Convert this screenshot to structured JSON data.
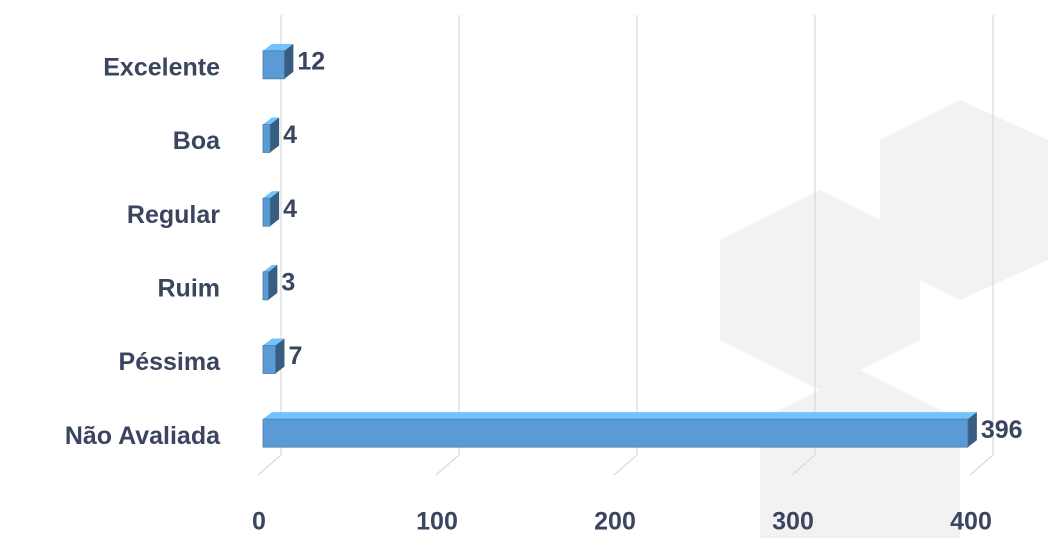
{
  "chart_data": {
    "type": "bar",
    "orientation": "horizontal",
    "categories": [
      "Excelente",
      "Boa",
      "Regular",
      "Ruim",
      "Péssima",
      "Não Avaliada"
    ],
    "values": [
      12,
      4,
      4,
      3,
      7,
      396
    ],
    "color": "#5b9bd5",
    "xlim": [
      0,
      400
    ],
    "xticks": [
      0,
      100,
      200,
      300,
      400
    ],
    "grid": true
  }
}
